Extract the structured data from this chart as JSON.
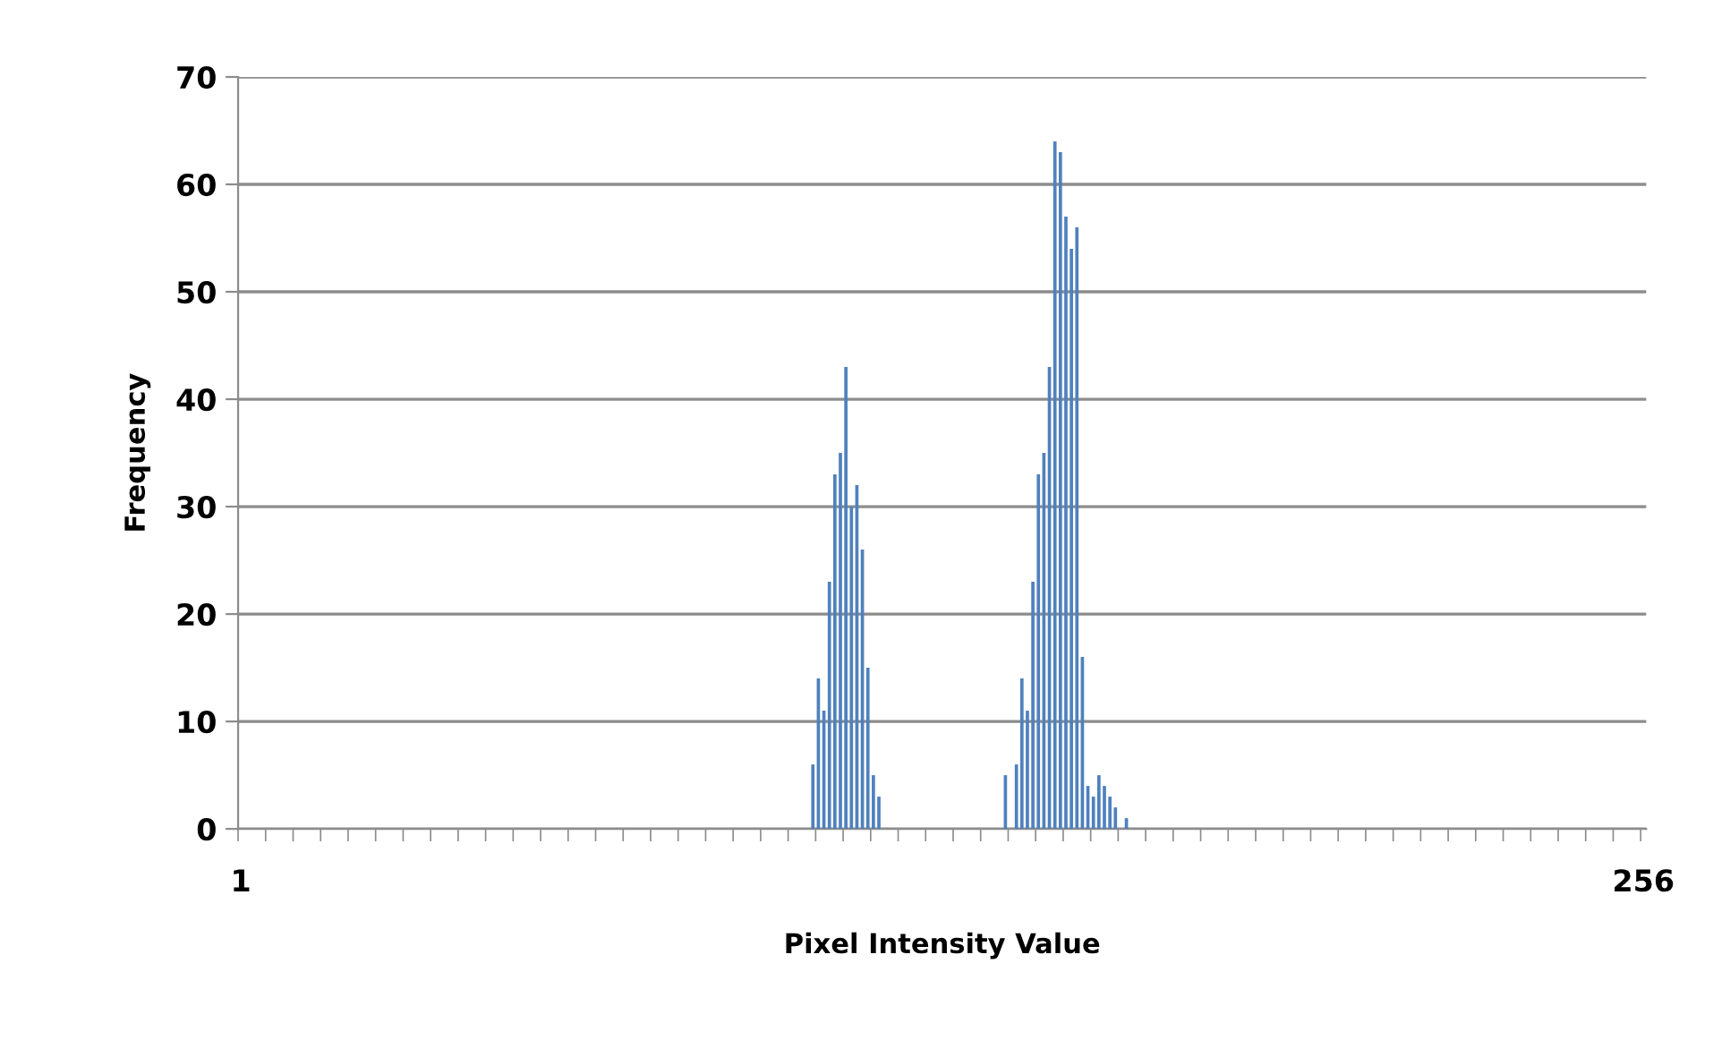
{
  "chart_data": {
    "type": "bar",
    "xlabel": "Pixel Intensity Value",
    "ylabel": "Frequency",
    "categories": [
      "1",
      null,
      null,
      null,
      null,
      null,
      null,
      null,
      null,
      null,
      null,
      null,
      null,
      null,
      null,
      null,
      null,
      null,
      null,
      null,
      null,
      null,
      null,
      null,
      null,
      null,
      null,
      null,
      null,
      null,
      null,
      null,
      null,
      null,
      null,
      null,
      null,
      null,
      null,
      null,
      null,
      null,
      null,
      null,
      null,
      null,
      null,
      null,
      null,
      null,
      null,
      null,
      null,
      null,
      null,
      null,
      null,
      null,
      null,
      null,
      null,
      null,
      null,
      null,
      null,
      null,
      null,
      null,
      null,
      null,
      null,
      null,
      null,
      null,
      null,
      null,
      null,
      null,
      null,
      null,
      null,
      null,
      null,
      null,
      null,
      null,
      null,
      null,
      null,
      null,
      null,
      null,
      null,
      null,
      null,
      null,
      null,
      null,
      null,
      null,
      null,
      null,
      null,
      null,
      null,
      null,
      null,
      null,
      null,
      null,
      null,
      null,
      null,
      null,
      null,
      null,
      null,
      null,
      null,
      null,
      null,
      null,
      null,
      null,
      null,
      null,
      null,
      null,
      null,
      null,
      null,
      null,
      null,
      null,
      null,
      null,
      null,
      null,
      null,
      null,
      null,
      null,
      null,
      null,
      null,
      null,
      null,
      null,
      null,
      null,
      null,
      null,
      null,
      null,
      null,
      null,
      null,
      null,
      null,
      null,
      null,
      null,
      null,
      null,
      null,
      null,
      null,
      null,
      null,
      null,
      null,
      null,
      null,
      null,
      null,
      null,
      null,
      null,
      null,
      null,
      null,
      null,
      null,
      null,
      null,
      null,
      null,
      null,
      null,
      null,
      null,
      null,
      null,
      null,
      null,
      null,
      null,
      null,
      null,
      null,
      null,
      null,
      null,
      null,
      null,
      null,
      null,
      null,
      null,
      null,
      null,
      null,
      null,
      null,
      null,
      null,
      null,
      null,
      null,
      null,
      null,
      null,
      null,
      null,
      null,
      null,
      null,
      null,
      null,
      null,
      null,
      null,
      null,
      null,
      null,
      null,
      null,
      null,
      null,
      null,
      null,
      null,
      null,
      null,
      null,
      null,
      null,
      null,
      null,
      null,
      null,
      null,
      null,
      null,
      null,
      "256"
    ],
    "values": [
      0,
      0,
      0,
      0,
      0,
      0,
      0,
      0,
      0,
      0,
      0,
      0,
      0,
      0,
      0,
      0,
      0,
      0,
      0,
      0,
      0,
      0,
      0,
      0,
      0,
      0,
      0,
      0,
      0,
      0,
      0,
      0,
      0,
      0,
      0,
      0,
      0,
      0,
      0,
      0,
      0,
      0,
      0,
      0,
      0,
      0,
      0,
      0,
      0,
      0,
      0,
      0,
      0,
      0,
      0,
      0,
      0,
      0,
      0,
      0,
      0,
      0,
      0,
      0,
      0,
      0,
      0,
      0,
      0,
      0,
      0,
      0,
      0,
      0,
      0,
      0,
      0,
      0,
      0,
      0,
      0,
      0,
      0,
      0,
      0,
      0,
      0,
      0,
      0,
      0,
      0,
      0,
      0,
      0,
      0,
      0,
      0,
      0,
      0,
      0,
      0,
      0,
      0,
      0,
      6,
      14,
      11,
      23,
      33,
      35,
      43,
      30,
      32,
      26,
      15,
      5,
      3,
      0,
      0,
      0,
      0,
      0,
      0,
      0,
      0,
      0,
      0,
      0,
      0,
      0,
      0,
      0,
      0,
      0,
      0,
      0,
      0,
      0,
      0,
      5,
      0,
      6,
      14,
      11,
      23,
      33,
      35,
      43,
      64,
      63,
      57,
      54,
      56,
      16,
      4,
      3,
      5,
      4,
      3,
      2,
      0,
      1,
      0,
      0,
      0,
      0,
      0,
      0,
      0,
      0,
      0,
      0,
      0,
      0,
      0,
      0,
      0,
      0,
      0,
      0,
      0,
      0,
      0,
      0,
      0,
      0,
      0,
      0,
      0,
      0,
      0,
      0,
      0,
      0,
      0,
      0,
      0,
      0,
      0,
      0,
      0,
      0,
      0,
      0,
      0,
      0,
      0,
      0,
      0,
      0,
      0,
      0,
      0,
      0,
      0,
      0,
      0,
      0,
      0,
      0,
      0,
      0,
      0,
      0,
      0,
      0,
      0,
      0,
      0,
      0,
      0,
      0,
      0,
      0,
      0,
      0,
      0,
      0,
      0,
      0,
      0,
      0,
      0,
      0,
      0,
      0,
      0,
      0,
      0,
      0,
      0,
      0,
      0,
      0,
      0,
      0
    ],
    "color": "#4f81bd",
    "ylim": [
      0,
      70
    ],
    "yticks": [
      0,
      10,
      20,
      30,
      40,
      50,
      60,
      70
    ],
    "grid": "y"
  }
}
